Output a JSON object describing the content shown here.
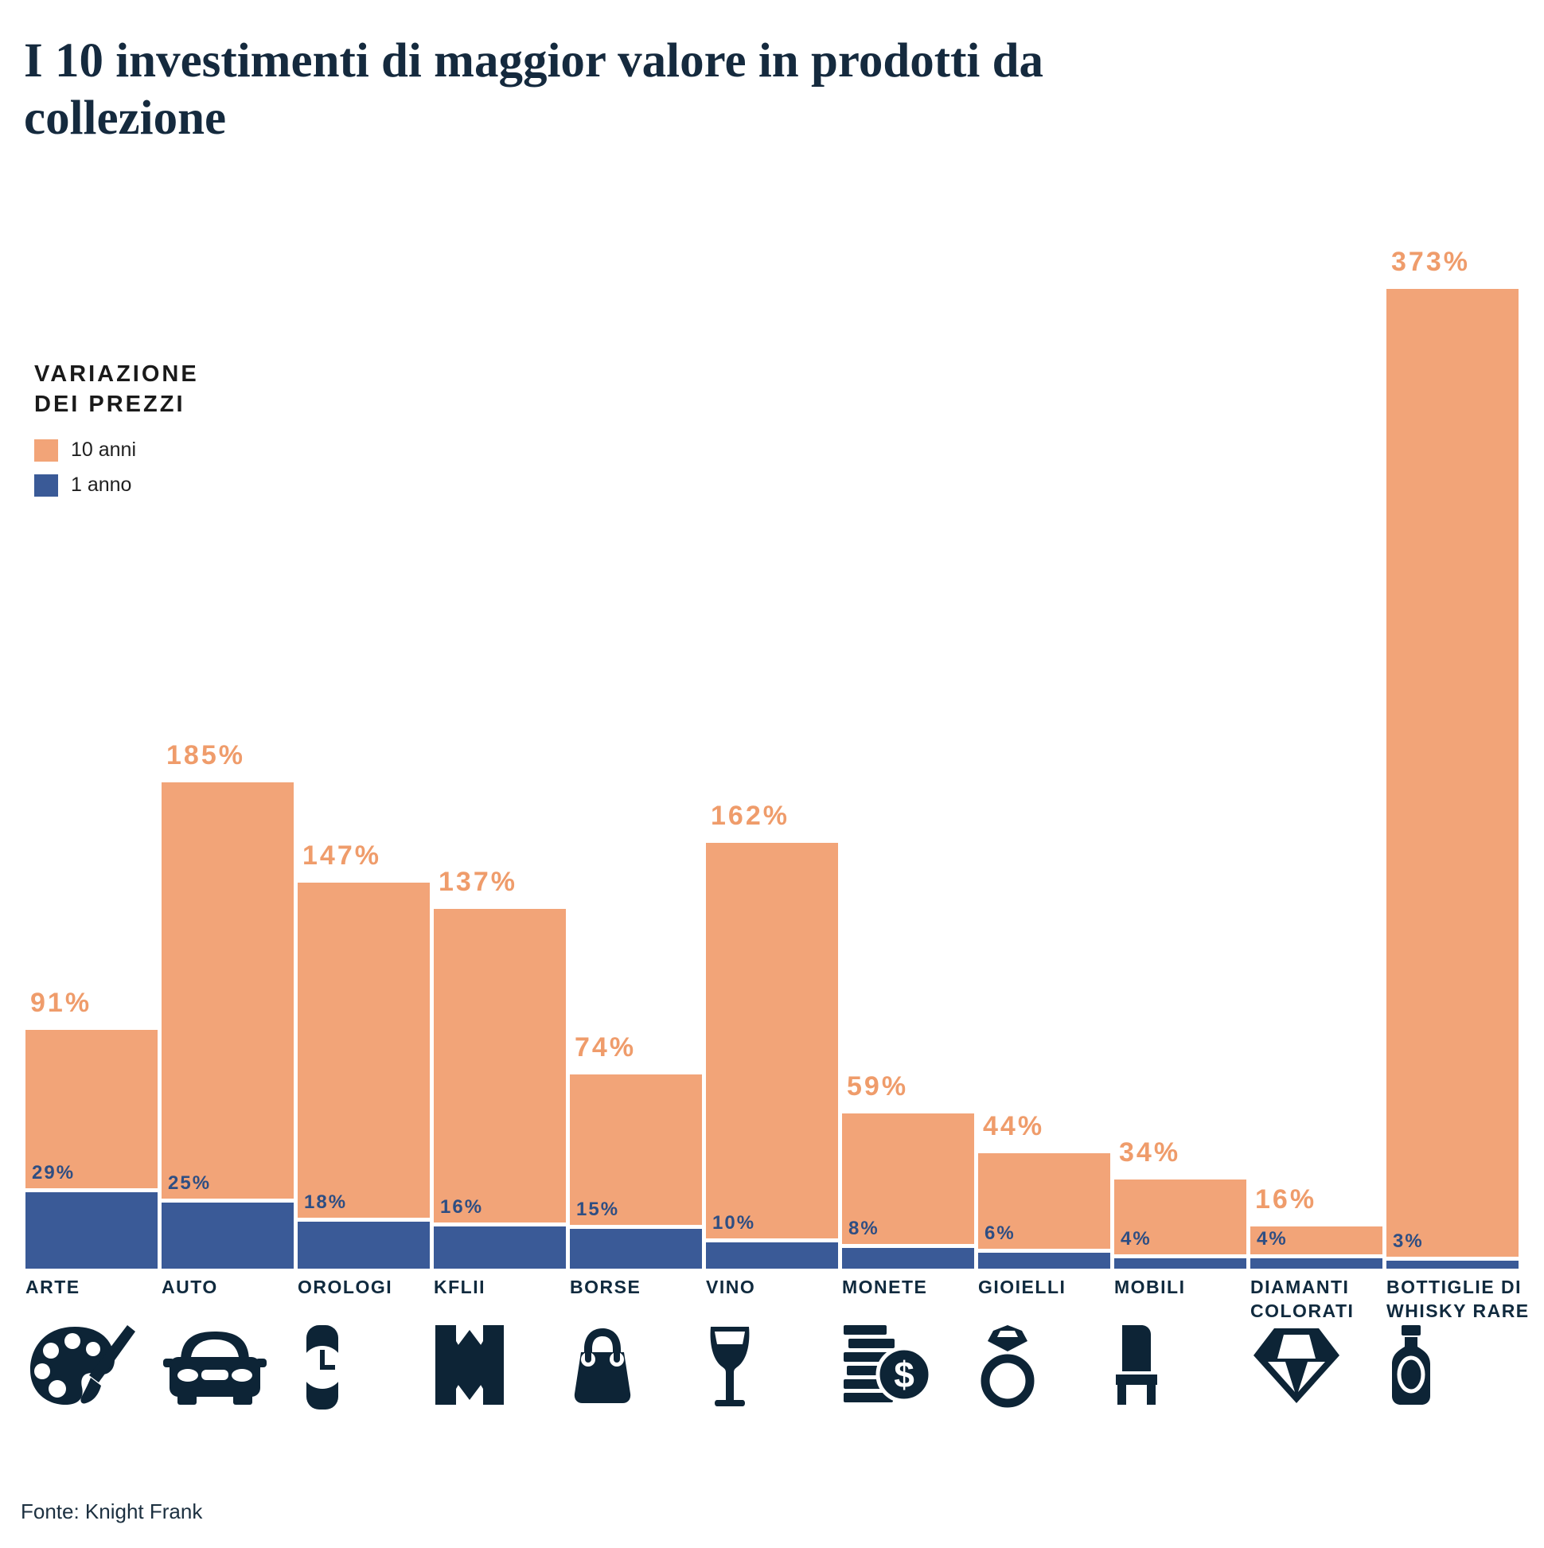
{
  "title": "I 10 investimenti di maggior valore in prodotti da\ncollezione",
  "legend": {
    "title_line1": "VARIAZIONE",
    "title_line2": "DEI PREZZI",
    "items": [
      {
        "label": "10 anni",
        "color": "#F2A478"
      },
      {
        "label": "1 anno",
        "color": "#3A5A97"
      }
    ]
  },
  "source": "Fonte: Knight Frank",
  "chart_data": {
    "type": "bar",
    "title": "I 10 investimenti di maggior valore in prodotti da collezione",
    "unit": "%",
    "categories": [
      "ARTE",
      "AUTO",
      "OROLOGI",
      "KFLII",
      "BORSE",
      "VINO",
      "MONETE",
      "GIOIELLI",
      "MOBILI",
      "DIAMANTI COLORATI",
      "BOTTIGLIE DI WHISKY RARE"
    ],
    "series": [
      {
        "name": "10 anni",
        "values": [
          91,
          185,
          147,
          137,
          74,
          162,
          59,
          44,
          34,
          16,
          373
        ]
      },
      {
        "name": "1 anno",
        "values": [
          29,
          25,
          18,
          16,
          15,
          10,
          8,
          6,
          4,
          4,
          3
        ]
      }
    ],
    "icons": [
      "palette-icon",
      "car-icon",
      "watch-icon",
      "kflii-logo-icon",
      "handbag-icon",
      "wine-glass-icon",
      "coins-icon",
      "ring-icon",
      "chair-icon",
      "diamond-icon",
      "whisky-bottle-icon"
    ],
    "colors": {
      "ten_years": "#F2A478",
      "one_year": "#3A5A97",
      "icon_navy": "#0D2436"
    },
    "ylim": [
      0,
      373
    ],
    "grid": false,
    "legend_position": "upper-left",
    "xlabel": "",
    "ylabel": ""
  }
}
